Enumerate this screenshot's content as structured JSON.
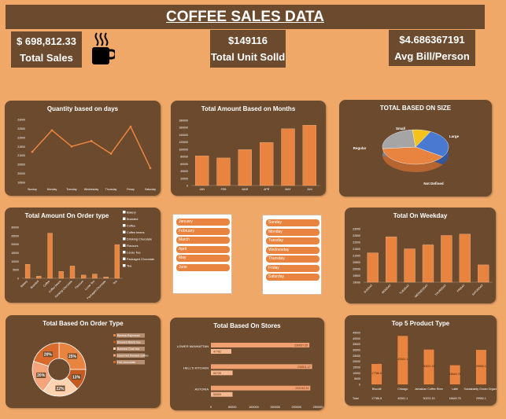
{
  "header": {
    "title": "COFFEE SALES DATA"
  },
  "kpis": {
    "total_sales": {
      "value": "$ 698,812.33",
      "label": "Total Sales"
    },
    "total_units": {
      "value": "$149116",
      "label": "Total Unit Solld"
    },
    "avg_bill": {
      "value": "$4.686367191",
      "label": "Avg Bill/Person"
    }
  },
  "icons": {
    "kpi_icon": "coffee-cup-icon"
  },
  "colors": {
    "background": "#f0a868",
    "panel": "#6b4a2e",
    "accent": "#e8843f"
  },
  "panels": {
    "days": {
      "title": "Quantity based on days"
    },
    "months": {
      "title": "Total Amount Based on Months"
    },
    "size": {
      "title": "TOTAL BASED ON SIZE"
    },
    "order_type": {
      "title": "Total Amount On Order type"
    },
    "weekday": {
      "title": "Total On Weekday"
    },
    "order_type_donut": {
      "title": "Total Based On Order Type"
    },
    "stores": {
      "title": "Total Based On Stores"
    },
    "top5": {
      "title": "Top 5 Product Type",
      "table_label": "Total"
    }
  },
  "slicers": {
    "months": [
      "January",
      "February",
      "March",
      "April",
      "May",
      "June"
    ],
    "days": [
      "Sunday",
      "Monday",
      "Tuesday",
      "Wednesday",
      "Thursday",
      "Friday",
      "Saturday"
    ]
  },
  "chart_data": [
    {
      "id": "days",
      "type": "line",
      "title": "Quantity based on days",
      "categories": [
        "Sunday",
        "Monday",
        "Tuesday",
        "Wednesday",
        "Thursday",
        "Friday",
        "Saturday"
      ],
      "values": [
        21200,
        22400,
        21500,
        21800,
        21100,
        22600,
        20300
      ],
      "yticks": [
        "19500",
        "20000",
        "20500",
        "21000",
        "21500",
        "22000",
        "22500",
        "23000"
      ],
      "ylim": [
        19500,
        23000
      ]
    },
    {
      "id": "months",
      "type": "bar",
      "title": "Total Amount Based on Months",
      "categories": [
        "JAN",
        "FEB",
        "MAR",
        "APR",
        "MAY",
        "JUN"
      ],
      "values": [
        81700,
        76100,
        99000,
        118900,
        156700,
        166500
      ],
      "yticks": [
        "0",
        "20000",
        "40000",
        "60000",
        "80000",
        "100000",
        "120000",
        "140000",
        "160000",
        "180000"
      ],
      "ylim": [
        0,
        180000
      ]
    },
    {
      "id": "size",
      "type": "pie",
      "title": "TOTAL BASED ON SIZE",
      "categories": [
        "Large",
        "Not Defined",
        "Regular",
        "Small"
      ],
      "values": [
        27,
        39,
        25,
        9
      ]
    },
    {
      "id": "order_type",
      "type": "bar",
      "title": "Total Amount On Order type",
      "categories": [
        "Bakery",
        "Branded",
        "Coffee",
        "Coffee beans",
        "Drinking Chocolate",
        "Flavours",
        "Loose Tea",
        "Packaged Chocolate",
        "Tea"
      ],
      "values": [
        8200,
        1300,
        26500,
        4000,
        7200,
        1900,
        2500,
        800,
        19800
      ],
      "yticks": [
        "0",
        "5000",
        "10000",
        "15000",
        "20000",
        "25000",
        "30000"
      ],
      "ylim": [
        0,
        30000
      ]
    },
    {
      "id": "weekday",
      "type": "bar",
      "title": "Total On Weekday",
      "categories": [
        "SUNDAY",
        "MONDAY",
        "TUESDAY",
        "WEDNESDAY",
        "THURSDAY",
        "FRIDAY",
        "SATURDAY"
      ],
      "values": [
        21200,
        22400,
        21500,
        21800,
        22500,
        22600,
        20300
      ],
      "yticks": [
        "19000",
        "19500",
        "20000",
        "20500",
        "21000",
        "21500",
        "22000",
        "22500",
        "23000"
      ],
      "ylim": [
        19000,
        23000
      ]
    },
    {
      "id": "order_type_donut",
      "type": "pie",
      "title": "Total Based On Order Type",
      "categories": [
        "Barista Espresso",
        "Brewed Black tea",
        "Brewed Chai tea",
        "Gourmet brewed coffee",
        "Hot chocolate"
      ],
      "values": [
        25,
        13,
        22,
        20,
        20
      ],
      "labels": [
        "25%",
        "13%",
        "22%",
        "20%",
        "20%"
      ]
    },
    {
      "id": "stores",
      "type": "bar",
      "title": "Total Based On Stores",
      "categories": [
        "LOWER MANHATTAN",
        "HELL'S KITCHEN",
        "ASTORIA"
      ],
      "series": [
        {
          "values": [
            230057.25,
            236511.17,
            232243.91
          ],
          "labels": [
            "230057.25",
            "236511.17",
            "232243.91"
          ]
        },
        {
          "values": [
            47782,
            50735,
            50599
          ],
          "labels": [
            "47782",
            "50735",
            "50599"
          ]
        }
      ],
      "xticks": [
        "0",
        "50000",
        "100000",
        "150000",
        "200000",
        "250000"
      ],
      "xlim": [
        0,
        250000
      ]
    },
    {
      "id": "top5",
      "type": "bar",
      "title": "Top 5 Product Type",
      "categories": [
        "Biscotti",
        "Chicago",
        "Jamaican Coffee River",
        "Latte",
        "Sustainably Grown Organic"
      ],
      "values": [
        17786.5,
        42061.1,
        30221.15,
        16640.75,
        29952.1
      ],
      "labels": [
        "17786.5",
        "42061.1",
        "30221.15",
        "16640.75",
        "29952.1"
      ],
      "yticks": [
        "0",
        "5000",
        "10000",
        "15000",
        "20000",
        "25000",
        "30000",
        "35000",
        "40000",
        "45000"
      ],
      "ylim": [
        0,
        45000
      ]
    }
  ]
}
